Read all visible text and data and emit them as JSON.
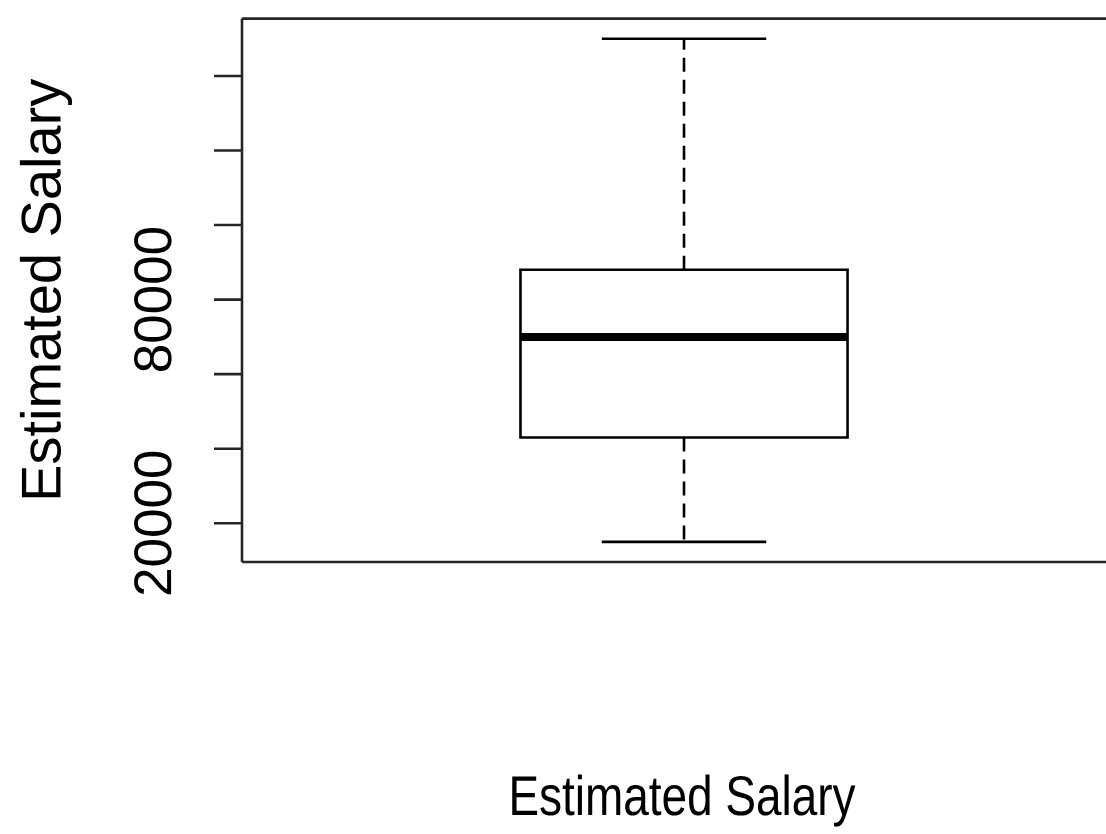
{
  "chart_data": {
    "type": "box",
    "xlabel": "Estimated Salary",
    "ylabel": "Estimated Salary",
    "categories": [
      null
    ],
    "boxes": [
      {
        "low": 15000,
        "q1": 43000,
        "median": 70000,
        "q3": 88000,
        "high": 150000
      }
    ],
    "color": "#000000",
    "ylim": [
      9600,
      155400
    ],
    "yticks": [
      20000,
      {
        "value": 40000,
        "label": null
      },
      {
        "value": 60000,
        "label": null
      },
      80000,
      {
        "value": 100000,
        "label": null
      },
      {
        "value": 120000,
        "label": null
      },
      {
        "value": 140000,
        "label": null
      }
    ]
  }
}
